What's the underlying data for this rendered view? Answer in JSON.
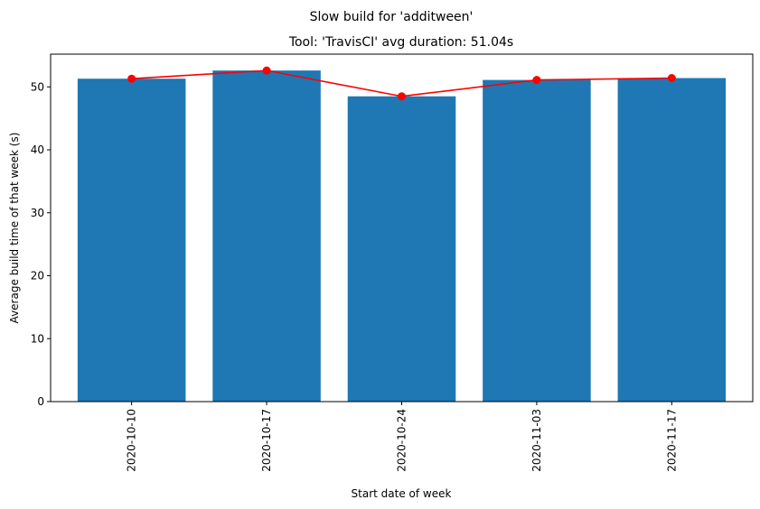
{
  "chart_data": {
    "type": "bar",
    "suptitle": "Slow build for 'additween'",
    "title": "Tool: 'TravisCI' avg duration: 51.04s",
    "xlabel": "Start date of week",
    "ylabel": "Average build time of that week (s)",
    "categories": [
      "2020-10-10",
      "2020-10-17",
      "2020-10-24",
      "2020-11-03",
      "2020-11-17"
    ],
    "series": [
      {
        "kind": "bar",
        "values": [
          51.3,
          52.6,
          48.5,
          51.1,
          51.4
        ],
        "color": "#1f77b4"
      },
      {
        "kind": "line",
        "marker": "circle",
        "values": [
          51.3,
          52.6,
          48.5,
          51.1,
          51.4
        ],
        "color": "#ff0000"
      }
    ],
    "ylim": [
      0,
      55.2
    ],
    "yticks": [
      0,
      10,
      20,
      30,
      40,
      50
    ],
    "x_tick_rotation": "vertical",
    "grid": false,
    "legend": "none"
  }
}
